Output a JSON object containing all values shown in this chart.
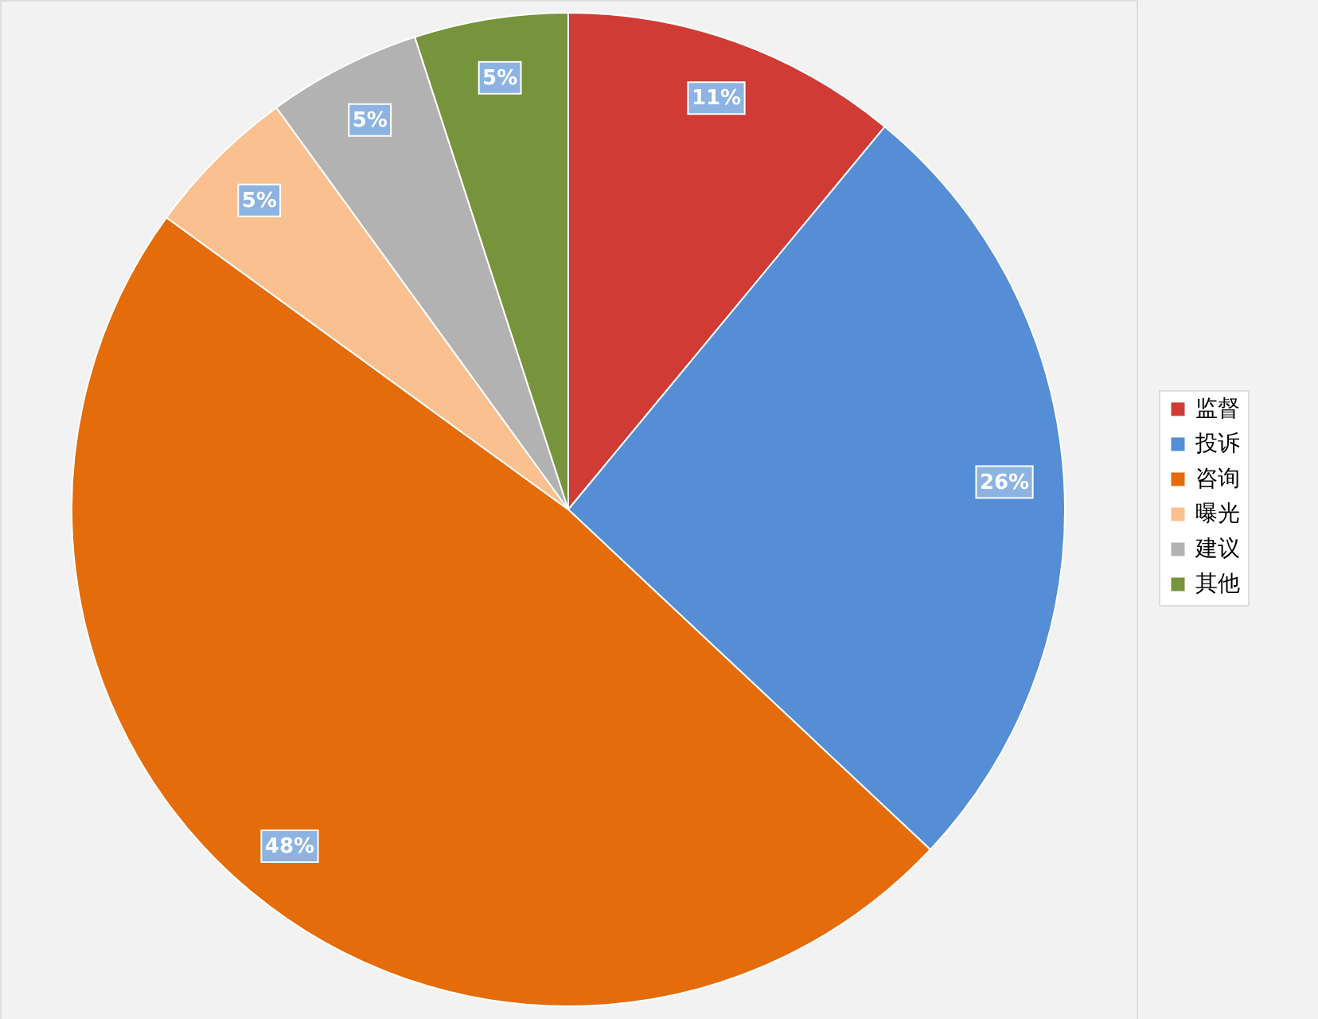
{
  "chart_data": {
    "type": "pie",
    "categories": [
      "监督",
      "投诉",
      "咨询",
      "曝光",
      "建议",
      "其他"
    ],
    "values": [
      11,
      26,
      48,
      5,
      5,
      5
    ],
    "value_labels": [
      "11%",
      "26%",
      "48%",
      "5%",
      "5%",
      "5%"
    ],
    "colors": [
      "#d13b35",
      "#558ed5",
      "#e46c0a",
      "#fac090",
      "#b2b2b2",
      "#77933c"
    ],
    "legend": "right"
  }
}
